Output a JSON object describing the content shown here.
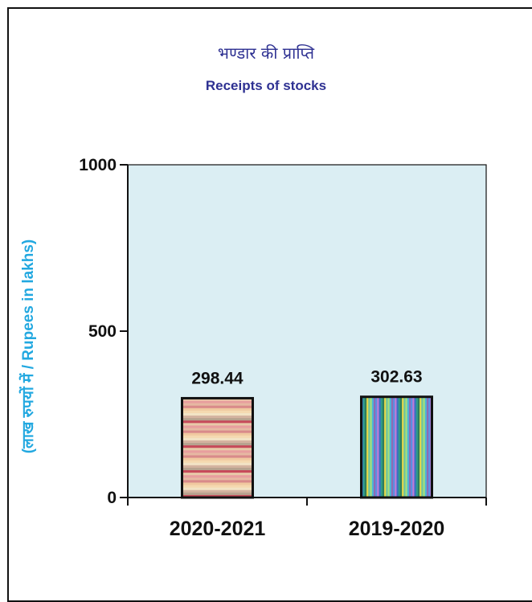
{
  "chart_data": {
    "type": "bar",
    "title_hindi": "भण्डार की प्राप्ति",
    "title": "Receipts of stocks",
    "ylabel": "(लाख रुपयों में / Rupees in lakhs)",
    "xlabel": "",
    "categories": [
      "2020-2021",
      "2019-2020"
    ],
    "values": [
      298.44,
      302.63
    ],
    "value_labels": [
      "298.44",
      "302.63"
    ],
    "ylim": [
      0,
      1000
    ],
    "yticks": [
      "0",
      "500",
      "1000"
    ],
    "grid": false,
    "legend": "none",
    "colors": {
      "plot_background": "#dbeef3",
      "title": "#2e3192",
      "ylabel": "#22a8e0",
      "bar1_stripes": [
        "#e8c9a8",
        "#d98a8a",
        "#f2e3c5",
        "#c74b5a",
        "#e6b8a2",
        "#f5d9b0",
        "#b7a38f",
        "#e89e9e",
        "#f0c9a0",
        "#d4b3a0"
      ],
      "bar2_stripes": [
        "#2e9c8a",
        "#6cc4a0",
        "#8e6bb5",
        "#3a6fc4",
        "#e6d84a",
        "#4bb6d8",
        "#c07ad6",
        "#2f7d5c",
        "#a6e07a",
        "#5a8fe0"
      ]
    }
  }
}
